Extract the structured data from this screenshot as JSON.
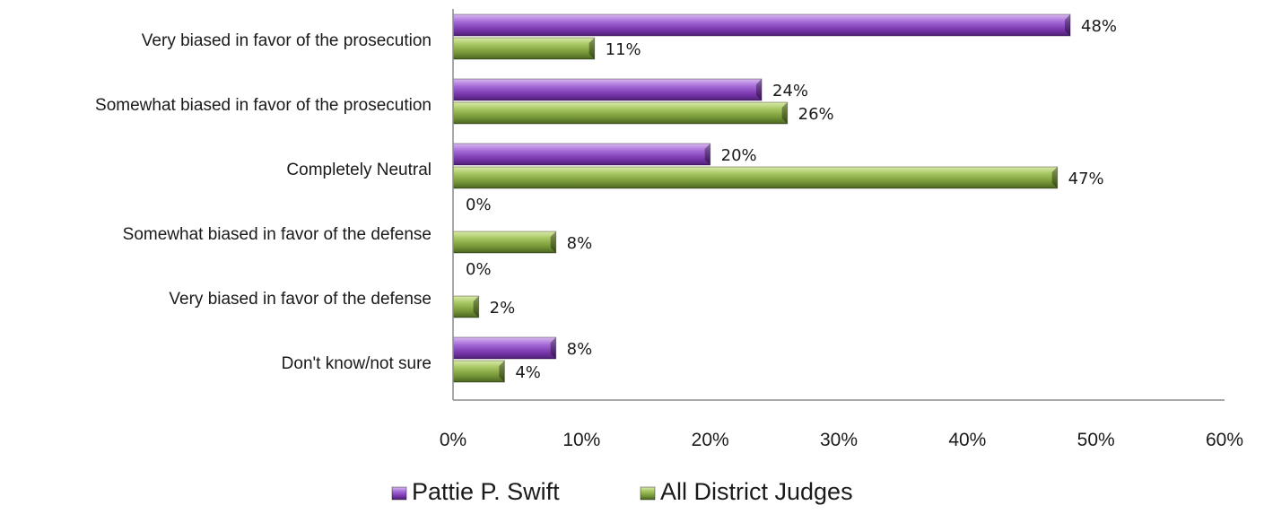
{
  "chart_data": {
    "type": "bar",
    "orientation": "horizontal",
    "categories": [
      "Very biased in favor of the prosecution",
      "Somewhat biased in favor of the prosecution",
      "Completely Neutral",
      "Somewhat biased in favor of the defense",
      "Very biased in favor of the defense",
      "Don't know/not sure"
    ],
    "series": [
      {
        "name": "Pattie P. Swift",
        "values": [
          48,
          24,
          20,
          0,
          0,
          8
        ],
        "color": "#7f3fb0"
      },
      {
        "name": "All District Judges",
        "values": [
          11,
          26,
          47,
          8,
          2,
          4
        ],
        "color": "#7a9a3a"
      }
    ],
    "value_suffix": "%",
    "xlim": [
      0,
      60
    ],
    "xticks": [
      0,
      10,
      20,
      30,
      40,
      50,
      60
    ],
    "xtick_labels": [
      "0%",
      "10%",
      "20%",
      "30%",
      "40%",
      "50%",
      "60%"
    ],
    "grid": false,
    "legend": "bottom"
  }
}
